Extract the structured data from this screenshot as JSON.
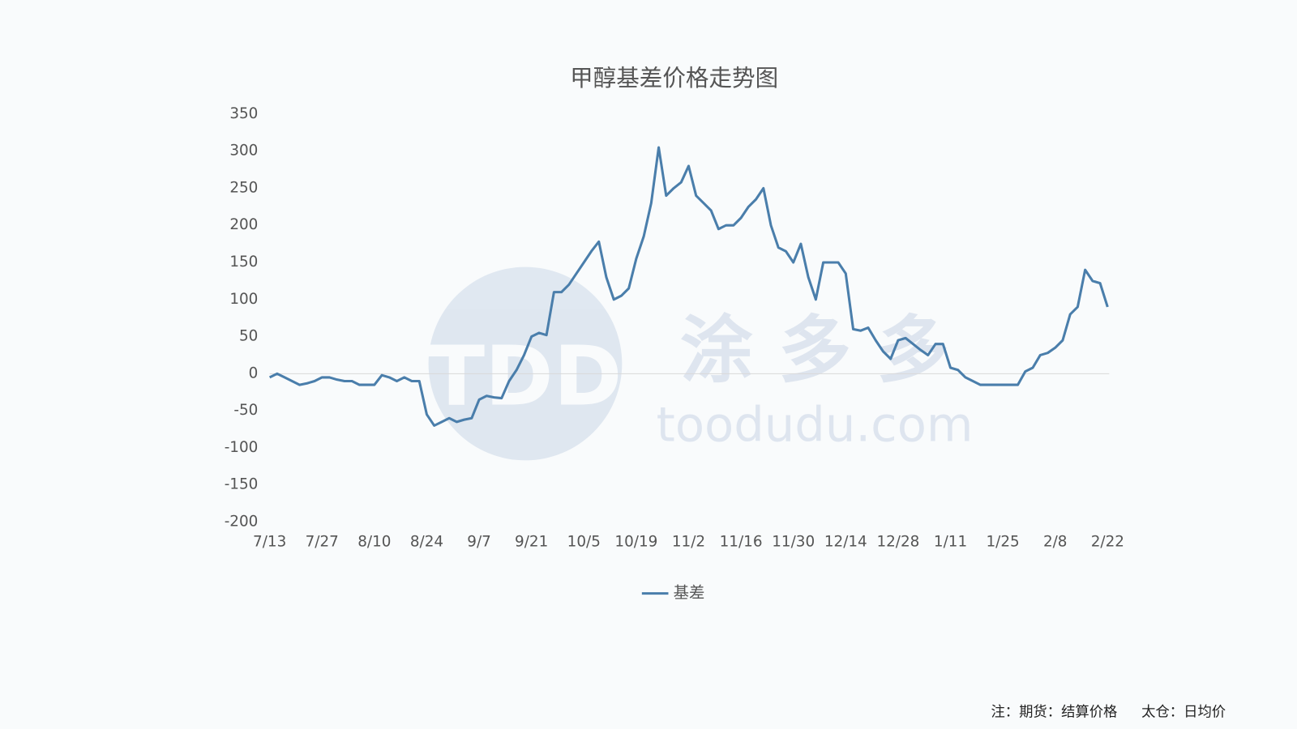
{
  "chart_data": {
    "type": "line",
    "title": "甲醇基差价格走势图",
    "categories": [
      "7/13",
      null,
      null,
      null,
      null,
      null,
      null,
      "7/27",
      null,
      null,
      null,
      null,
      null,
      null,
      "8/10",
      null,
      null,
      null,
      null,
      null,
      null,
      "8/24",
      null,
      null,
      null,
      null,
      null,
      null,
      "9/7",
      null,
      null,
      null,
      null,
      null,
      null,
      "9/21",
      null,
      null,
      null,
      null,
      null,
      null,
      "10/5",
      null,
      null,
      null,
      null,
      null,
      null,
      "10/19",
      null,
      null,
      null,
      null,
      null,
      null,
      "11/2",
      null,
      null,
      null,
      null,
      null,
      null,
      "11/16",
      null,
      null,
      null,
      null,
      null,
      null,
      "11/30",
      null,
      null,
      null,
      null,
      null,
      null,
      "12/14",
      null,
      null,
      null,
      null,
      null,
      null,
      "12/28",
      null,
      null,
      null,
      null,
      null,
      null,
      "1/11",
      null,
      null,
      null,
      null,
      null,
      null,
      "1/25",
      null,
      null,
      null,
      null,
      null,
      null,
      "2/8",
      null,
      null,
      null,
      null,
      null,
      null,
      "2/22"
    ],
    "series": [
      {
        "name": "基差",
        "color": "#4a7eab",
        "values": [
          -5,
          0,
          -5,
          -10,
          -15,
          -13,
          -10,
          -5,
          -5,
          -8,
          -10,
          -10,
          -15,
          -15,
          -15,
          -2,
          -5,
          -10,
          -5,
          -10,
          -10,
          -55,
          -70,
          -65,
          -60,
          -65,
          -62,
          -60,
          -35,
          -30,
          -32,
          -33,
          -10,
          5,
          25,
          50,
          55,
          52,
          110,
          110,
          120,
          135,
          150,
          165,
          178,
          130,
          100,
          105,
          115,
          155,
          185,
          230,
          305,
          240,
          250,
          258,
          280,
          240,
          230,
          220,
          195,
          200,
          200,
          210,
          225,
          235,
          250,
          200,
          170,
          165,
          150,
          175,
          130,
          100,
          150,
          150,
          150,
          135,
          60,
          58,
          62,
          45,
          30,
          20,
          45,
          48,
          40,
          32,
          25,
          40,
          40,
          8,
          5,
          -5,
          -10,
          -15,
          -15,
          -15,
          -15,
          -15,
          -15,
          3,
          8,
          25,
          28,
          35,
          45,
          80,
          90,
          140,
          125,
          122,
          90
        ]
      }
    ],
    "ylim": [
      -200,
      350
    ],
    "yticks": [
      -200,
      -150,
      -100,
      -50,
      0,
      50,
      100,
      150,
      200,
      250,
      300,
      350
    ],
    "grid": false,
    "watermark": {
      "logo": "TDD",
      "name": "涂 多 多",
      "url": "toodudu.com"
    },
    "notes": [
      "注：期货：结算价格",
      "太仓：日均价"
    ]
  }
}
